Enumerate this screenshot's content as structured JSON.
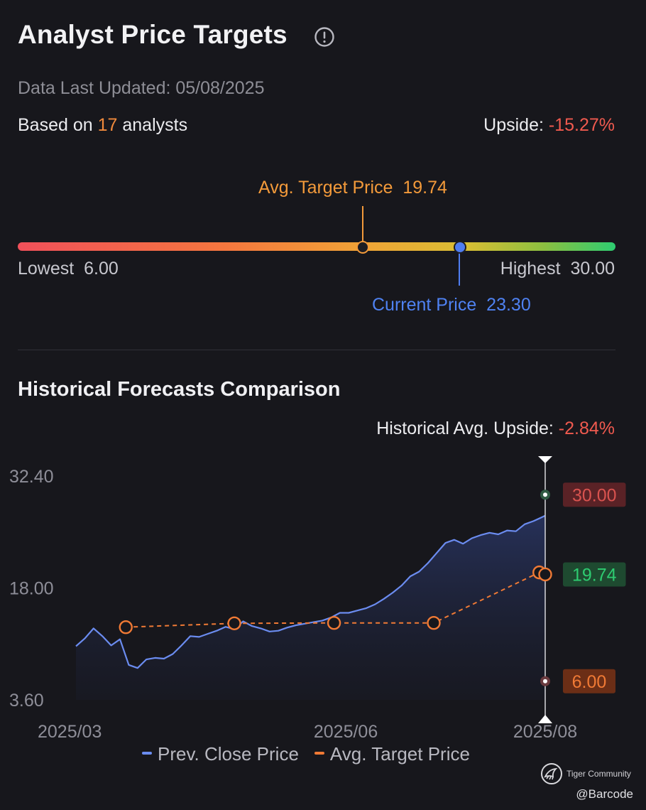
{
  "header": {
    "title": "Analyst Price Targets",
    "updated": "Data Last Updated: 05/08/2025",
    "based_prefix": "Based on ",
    "analyst_count": "17",
    "based_suffix": " analysts",
    "upside_label": "Upside: ",
    "upside_value": "-15.27%"
  },
  "range": {
    "avg_label": "Avg. Target Price",
    "avg_value": "19.74",
    "lowest_label": "Lowest",
    "lowest_value": "6.00",
    "highest_label": "Highest",
    "highest_value": "30.00",
    "current_label": "Current Price",
    "current_value": "23.30"
  },
  "history": {
    "title": "Historical Forecasts Comparison",
    "upside_label": "Historical Avg. Upside: ",
    "upside_value": "-2.84%"
  },
  "colors": {
    "accent_orange": "#f08a3c",
    "negative_red": "#f05a4f",
    "current_blue": "#4f7df0",
    "positive_green": "#2ecc71",
    "background": "#17171c"
  },
  "watermark": {
    "brand": "Tiger Community",
    "user": "@Barcode"
  },
  "chart_data": {
    "type": "line",
    "title": "",
    "xlabel": "",
    "ylabel": "",
    "x_ticks": [
      "2025/03",
      "2025/06",
      "2025/08"
    ],
    "y_ticks": [
      32.4,
      18.0,
      3.6
    ],
    "y_tick_labels": [
      "32.40",
      "18.00",
      "3.60"
    ],
    "ylim": [
      3.6,
      32.4
    ],
    "x_range": [
      "2025-03-01",
      "2025-08-08"
    ],
    "legend": [
      "Prev. Close Price",
      "Avg. Target Price"
    ],
    "legend_position": "bottom",
    "grid": false,
    "series": [
      {
        "name": "Prev. Close Price",
        "color": "#6b8cf0",
        "style": "solid-area",
        "x": [
          "2025-03-01",
          "2025-03-04",
          "2025-03-07",
          "2025-03-10",
          "2025-03-13",
          "2025-03-16",
          "2025-03-19",
          "2025-03-22",
          "2025-03-25",
          "2025-03-28",
          "2025-03-31",
          "2025-04-03",
          "2025-04-06",
          "2025-04-09",
          "2025-04-12",
          "2025-04-15",
          "2025-04-18",
          "2025-04-21",
          "2025-04-24",
          "2025-04-27",
          "2025-04-30",
          "2025-05-03",
          "2025-05-06",
          "2025-05-09",
          "2025-05-12",
          "2025-05-15",
          "2025-05-18",
          "2025-05-21",
          "2025-05-24",
          "2025-05-27",
          "2025-05-30",
          "2025-06-02",
          "2025-06-05",
          "2025-06-08",
          "2025-06-11",
          "2025-06-14",
          "2025-06-17",
          "2025-06-20",
          "2025-06-23",
          "2025-06-26",
          "2025-06-29",
          "2025-07-02",
          "2025-07-05",
          "2025-07-08",
          "2025-07-11",
          "2025-07-14",
          "2025-07-17",
          "2025-07-20",
          "2025-07-23",
          "2025-07-26",
          "2025-07-29",
          "2025-08-01",
          "2025-08-04",
          "2025-08-08"
        ],
        "values": [
          10.5,
          11.5,
          12.8,
          11.8,
          10.6,
          11.4,
          8.1,
          7.7,
          8.8,
          9.0,
          8.9,
          9.5,
          10.6,
          11.8,
          11.7,
          12.1,
          12.5,
          13.0,
          12.7,
          13.7,
          13.1,
          12.8,
          12.4,
          12.5,
          12.9,
          13.2,
          13.4,
          13.6,
          13.8,
          14.2,
          14.8,
          14.8,
          15.1,
          15.4,
          15.9,
          16.6,
          17.4,
          18.3,
          19.5,
          20.1,
          21.2,
          22.5,
          23.8,
          24.2,
          23.7,
          24.4,
          24.8,
          25.1,
          24.9,
          25.4,
          25.3,
          26.2,
          26.6,
          27.3
        ]
      },
      {
        "name": "Avg. Target Price",
        "color": "#f07a35",
        "style": "dashed-markers",
        "x": [
          "2025-03-18",
          "2025-04-24",
          "2025-05-28",
          "2025-07-01",
          "2025-08-06",
          "2025-08-08"
        ],
        "values": [
          12.95,
          13.45,
          13.5,
          13.5,
          20.0,
          19.74
        ]
      }
    ],
    "markers": [
      {
        "label": "30.00",
        "value": 30.0,
        "color": "#d9534f"
      },
      {
        "label": "19.74",
        "value": 19.74,
        "color": "#2ecc71"
      },
      {
        "label": "6.00",
        "value": 6.0,
        "color": "#f07a35"
      }
    ]
  }
}
